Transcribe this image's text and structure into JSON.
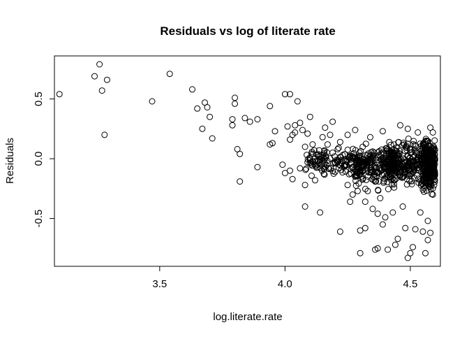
{
  "chart_data": {
    "type": "scatter",
    "title": "Residuals vs log of literate rate",
    "xlabel": "log.literate.rate",
    "ylabel": "Residuals",
    "xlim": [
      3.08,
      4.62
    ],
    "ylim": [
      -0.9,
      0.86
    ],
    "xticks": [
      3.5,
      4.0,
      4.5
    ],
    "xtick_labels": [
      "3.5",
      "4.0",
      "4.5"
    ],
    "yticks": [
      -0.5,
      0.0,
      0.5
    ],
    "ytick_labels": [
      "-0.5",
      "0.0",
      "0.5"
    ],
    "grid": false,
    "legend": "none",
    "marker": "open-circle",
    "points": [
      [
        3.1,
        0.54
      ],
      [
        3.24,
        0.69
      ],
      [
        3.26,
        0.79
      ],
      [
        3.27,
        0.57
      ],
      [
        3.29,
        0.66
      ],
      [
        3.28,
        0.2
      ],
      [
        3.47,
        0.48
      ],
      [
        3.54,
        0.71
      ],
      [
        3.63,
        0.58
      ],
      [
        3.65,
        0.42
      ],
      [
        3.67,
        0.25
      ],
      [
        3.68,
        0.47
      ],
      [
        3.69,
        0.43
      ],
      [
        3.7,
        0.35
      ],
      [
        3.71,
        0.17
      ],
      [
        3.79,
        0.33
      ],
      [
        3.79,
        0.28
      ],
      [
        3.8,
        0.51
      ],
      [
        3.8,
        0.46
      ],
      [
        3.81,
        0.08
      ],
      [
        3.82,
        0.04
      ],
      [
        3.82,
        -0.19
      ],
      [
        3.84,
        0.34
      ],
      [
        3.86,
        0.31
      ],
      [
        3.89,
        0.33
      ],
      [
        3.89,
        -0.07
      ],
      [
        3.94,
        0.12
      ],
      [
        3.94,
        0.44
      ],
      [
        3.95,
        0.13
      ],
      [
        3.96,
        0.23
      ],
      [
        3.99,
        -0.05
      ],
      [
        4.0,
        0.54
      ],
      [
        4.0,
        -0.12
      ],
      [
        4.01,
        0.27
      ],
      [
        4.02,
        0.54
      ],
      [
        4.02,
        -0.1
      ],
      [
        4.02,
        0.16
      ],
      [
        4.03,
        0.2
      ],
      [
        4.03,
        -0.17
      ],
      [
        4.04,
        0.22
      ],
      [
        4.04,
        0.28
      ],
      [
        4.05,
        0.48
      ],
      [
        4.06,
        0.3
      ],
      [
        4.06,
        -0.08
      ],
      [
        4.07,
        0.24
      ],
      [
        4.08,
        0.1
      ],
      [
        4.08,
        -0.22
      ],
      [
        4.08,
        -0.4
      ],
      [
        4.09,
        0.21
      ],
      [
        4.09,
        -0.03
      ],
      [
        4.1,
        0.35
      ],
      [
        4.1,
        0.0
      ],
      [
        4.11,
        0.12
      ],
      [
        4.12,
        -0.18
      ],
      [
        4.13,
        -0.05
      ],
      [
        4.14,
        -0.45
      ],
      [
        4.15,
        0.18
      ],
      [
        4.16,
        0.26
      ],
      [
        4.17,
        0.12
      ],
      [
        4.18,
        0.2
      ],
      [
        4.19,
        0.31
      ],
      [
        4.19,
        0.05
      ],
      [
        4.2,
        -0.11
      ],
      [
        4.21,
        0.08
      ],
      [
        4.22,
        -0.61
      ],
      [
        4.22,
        0.14
      ],
      [
        4.23,
        0.03
      ],
      [
        4.24,
        -0.02
      ],
      [
        4.25,
        0.2
      ],
      [
        4.25,
        -0.22
      ],
      [
        4.26,
        -0.36
      ],
      [
        4.27,
        -0.3
      ],
      [
        4.28,
        -0.15
      ],
      [
        4.28,
        0.24
      ],
      [
        4.29,
        -0.27
      ],
      [
        4.3,
        -0.6
      ],
      [
        4.3,
        -0.79
      ],
      [
        4.31,
        0.1
      ],
      [
        4.32,
        -0.58
      ],
      [
        4.32,
        -0.36
      ],
      [
        4.33,
        -0.27
      ],
      [
        4.34,
        0.18
      ],
      [
        4.35,
        0.06
      ],
      [
        4.35,
        -0.42
      ],
      [
        4.36,
        -0.76
      ],
      [
        4.37,
        -0.75
      ],
      [
        4.37,
        -0.46
      ],
      [
        4.38,
        -0.33
      ],
      [
        4.39,
        0.23
      ],
      [
        4.39,
        -0.55
      ],
      [
        4.4,
        -0.49
      ],
      [
        4.41,
        -0.76
      ],
      [
        4.42,
        -0.09
      ],
      [
        4.43,
        -0.45
      ],
      [
        4.44,
        -0.72
      ],
      [
        4.45,
        -0.67
      ],
      [
        4.46,
        0.28
      ],
      [
        4.47,
        -0.4
      ],
      [
        4.48,
        -0.58
      ],
      [
        4.49,
        -0.83
      ],
      [
        4.49,
        0.25
      ],
      [
        4.5,
        -0.79
      ],
      [
        4.51,
        -0.74
      ],
      [
        4.52,
        -0.59
      ],
      [
        4.53,
        0.22
      ],
      [
        4.54,
        -0.45
      ],
      [
        4.55,
        -0.61
      ],
      [
        4.56,
        -0.79
      ],
      [
        4.57,
        -0.68
      ],
      [
        4.57,
        -0.52
      ],
      [
        4.58,
        -0.62
      ],
      [
        4.58,
        0.26
      ],
      [
        4.59,
        -0.3
      ],
      [
        4.59,
        0.22
      ]
    ],
    "clusters": [
      {
        "x": [
          4.08,
          4.35
        ],
        "y": [
          -0.18,
          0.12
        ],
        "n": 160
      },
      {
        "x": [
          4.28,
          4.45
        ],
        "y": [
          -0.3,
          0.18
        ],
        "n": 180
      },
      {
        "x": [
          4.4,
          4.6
        ],
        "y": [
          -0.28,
          0.2
        ],
        "n": 320
      },
      {
        "x": [
          4.55,
          4.6
        ],
        "y": [
          -0.4,
          0.26
        ],
        "n": 200
      }
    ]
  }
}
